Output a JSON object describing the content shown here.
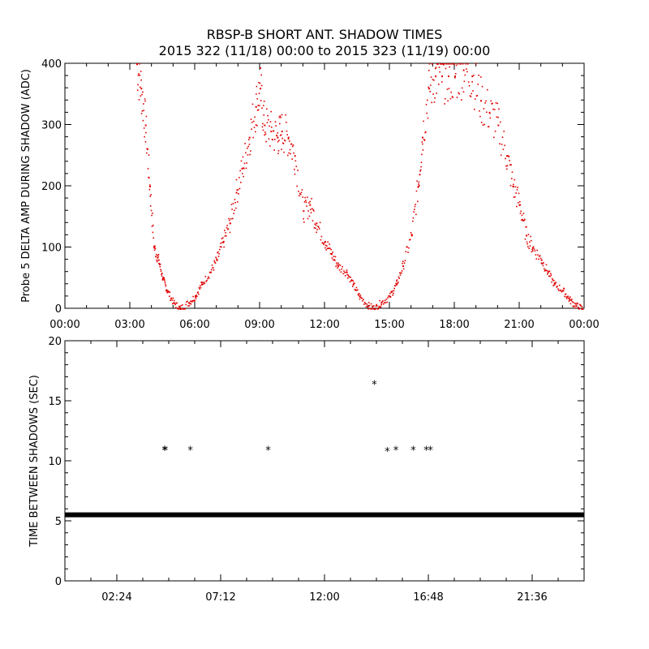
{
  "title_line1": "RBSP-B SHORT ANT. SHADOW TIMES",
  "title_line2": "2015 322 (11/18) 00:00 to 2015 323 (11/19) 00:00",
  "chart_data": [
    {
      "type": "scatter",
      "ylabel": "Probe 5 DELTA AMP DURING SHADOW (ADC)",
      "xlim": [
        0,
        24
      ],
      "ylim": [
        0,
        400
      ],
      "x_unit": "hours",
      "xtick_labels": [
        "00:00",
        "03:00",
        "06:00",
        "09:00",
        "12:00",
        "15:00",
        "18:00",
        "21:00",
        "00:00"
      ],
      "ytick_labels": [
        "0",
        "100",
        "200",
        "300",
        "400"
      ],
      "color": "#e00000",
      "series": [
        {
          "x": [
            3.3,
            3.5,
            3.7,
            3.9,
            4.1,
            4.3,
            4.5,
            4.7,
            5.0,
            5.3,
            5.7,
            6.0,
            6.3,
            6.7,
            7.0,
            7.3,
            7.6,
            7.9,
            8.2,
            8.5,
            8.8,
            9.0,
            9.2,
            9.5,
            9.8,
            10.0,
            10.3,
            10.6,
            11.0,
            11.3,
            11.6,
            12.0,
            12.3,
            12.6,
            13.0,
            13.3,
            13.6,
            14.0,
            14.3,
            14.6,
            15.0,
            15.3,
            15.6,
            16.0,
            16.3,
            16.5,
            16.8,
            17.1,
            17.4,
            17.7,
            18.0,
            18.4,
            18.8,
            19.2,
            19.6,
            20.0,
            20.4,
            20.7,
            21.0,
            21.3,
            21.6,
            22.0,
            22.3,
            22.6,
            23.0,
            23.3,
            23.6,
            23.9
          ],
          "y": [
            400,
            360,
            300,
            200,
            100,
            80,
            50,
            30,
            10,
            0,
            10,
            20,
            40,
            60,
            80,
            110,
            140,
            190,
            230,
            280,
            330,
            360,
            300,
            290,
            280,
            290,
            280,
            250,
            160,
            170,
            140,
            110,
            90,
            70,
            60,
            40,
            20,
            5,
            0,
            10,
            20,
            40,
            70,
            120,
            200,
            280,
            360,
            380,
            380,
            380,
            380,
            390,
            380,
            340,
            320,
            300,
            250,
            200,
            170,
            120,
            100,
            80,
            60,
            40,
            30,
            15,
            5,
            0
          ]
        }
      ]
    },
    {
      "type": "scatter",
      "ylabel": "TIME BETWEEN SHADOWS (SEC)",
      "xlim": [
        0,
        24
      ],
      "ylim": [
        0,
        20
      ],
      "x_unit": "hours",
      "xtick_labels": [
        "02:24",
        "07:12",
        "12:00",
        "16:48",
        "21:36"
      ],
      "ytick_labels": [
        "0",
        "5",
        "10",
        "15",
        "20"
      ],
      "marker": "*",
      "color": "#000000",
      "baseline": {
        "y": 5.5,
        "x_range": [
          0,
          24
        ]
      },
      "series": [
        {
          "x": [
            4.6,
            4.65,
            5.8,
            9.4,
            14.3,
            14.9,
            15.3,
            16.1,
            16.7,
            16.9
          ],
          "y": [
            10.9,
            10.9,
            10.9,
            10.9,
            16.4,
            10.8,
            10.9,
            10.9,
            10.9,
            10.9
          ]
        }
      ]
    }
  ]
}
